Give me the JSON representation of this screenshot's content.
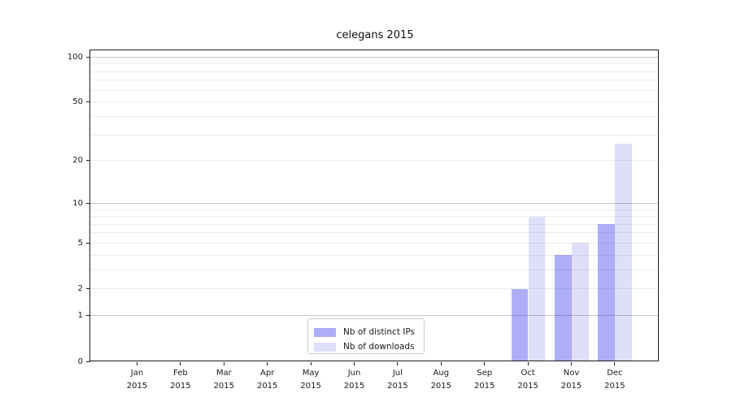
{
  "chart_data": {
    "type": "bar",
    "title": "celegans 2015",
    "categories": [
      "Jan 2015",
      "Feb 2015",
      "Mar 2015",
      "Apr 2015",
      "May 2015",
      "Jun 2015",
      "Jul 2015",
      "Aug 2015",
      "Sep 2015",
      "Oct 2015",
      "Nov 2015",
      "Dec 2015"
    ],
    "series": [
      {
        "name": "Nb of distinct IPs",
        "color": "rgba(30,30,235,0.36)",
        "values": [
          0,
          0,
          0,
          0,
          0,
          0,
          0,
          0,
          0,
          2,
          4,
          7
        ]
      },
      {
        "name": "Nb of downloads",
        "color": "rgba(30,30,235,0.14)",
        "values": [
          0,
          0,
          0,
          0,
          0,
          0,
          0,
          0,
          0,
          8,
          5,
          26
        ]
      }
    ],
    "xlabel": "",
    "ylabel": "",
    "y_axis": {
      "scale": "log10(1+value)",
      "tick_values": [
        0,
        1,
        2,
        5,
        10,
        20,
        50,
        100
      ],
      "major_gridlines": [
        1,
        10,
        100
      ],
      "minor_gridlines": [
        2,
        3,
        4,
        5,
        6,
        7,
        8,
        9,
        20,
        30,
        40,
        50,
        60,
        70,
        80,
        90
      ],
      "ylim": [
        0,
        112
      ],
      "grid": true
    },
    "legend": {
      "position": "bottom-center-inside",
      "entries": [
        "Nb of distinct IPs",
        "Nb of downloads"
      ]
    }
  },
  "colors": {
    "background": "#ffffff",
    "bar_distinct_ips": "rgba(30,30,235,0.36)",
    "bar_downloads": "rgba(30,30,235,0.14)",
    "grid_minor": "#ececec",
    "grid_major": "#c9c9c9",
    "axis": "#1c1c1c",
    "text": "#1a1a1a",
    "legend_border": "#cccccc"
  }
}
